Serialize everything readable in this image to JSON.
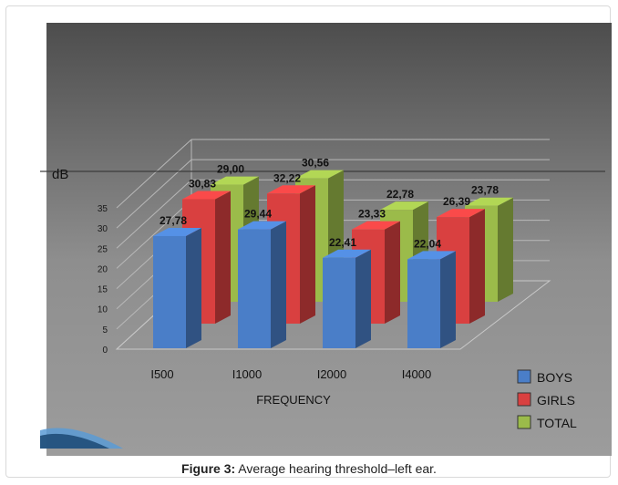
{
  "chart_data": {
    "type": "bar",
    "ylabel": "dB",
    "xlabel": "FREQUENCY",
    "ylim": [
      0,
      35
    ],
    "yticks": [
      "0",
      "5",
      "10",
      "15",
      "20",
      "25",
      "30",
      "35"
    ],
    "categories": [
      "I500",
      "I1000",
      "I2000",
      "I4000"
    ],
    "series": [
      {
        "name": "BOYS",
        "values": [
          27.78,
          29.44,
          22.41,
          22.04
        ],
        "labels": [
          "27,78",
          "29,44",
          "22,41",
          "22,04"
        ],
        "color": "#4a7ec8"
      },
      {
        "name": "GIRLS",
        "values": [
          30.83,
          32.22,
          23.33,
          26.39
        ],
        "labels": [
          "30,83",
          "32,22",
          "23,33",
          "26,39"
        ],
        "color": "#d94040"
      },
      {
        "name": "TOTAL",
        "values": [
          29.0,
          30.56,
          22.78,
          23.78
        ],
        "labels": [
          "29,00",
          "30,56",
          "22,78",
          "23,78"
        ],
        "color": "#9bbb4a"
      }
    ],
    "legend_position": "bottom-right",
    "grid": true
  },
  "caption": {
    "prefix": "Figure 3:",
    "text": " Average hearing threshold–left ear."
  }
}
